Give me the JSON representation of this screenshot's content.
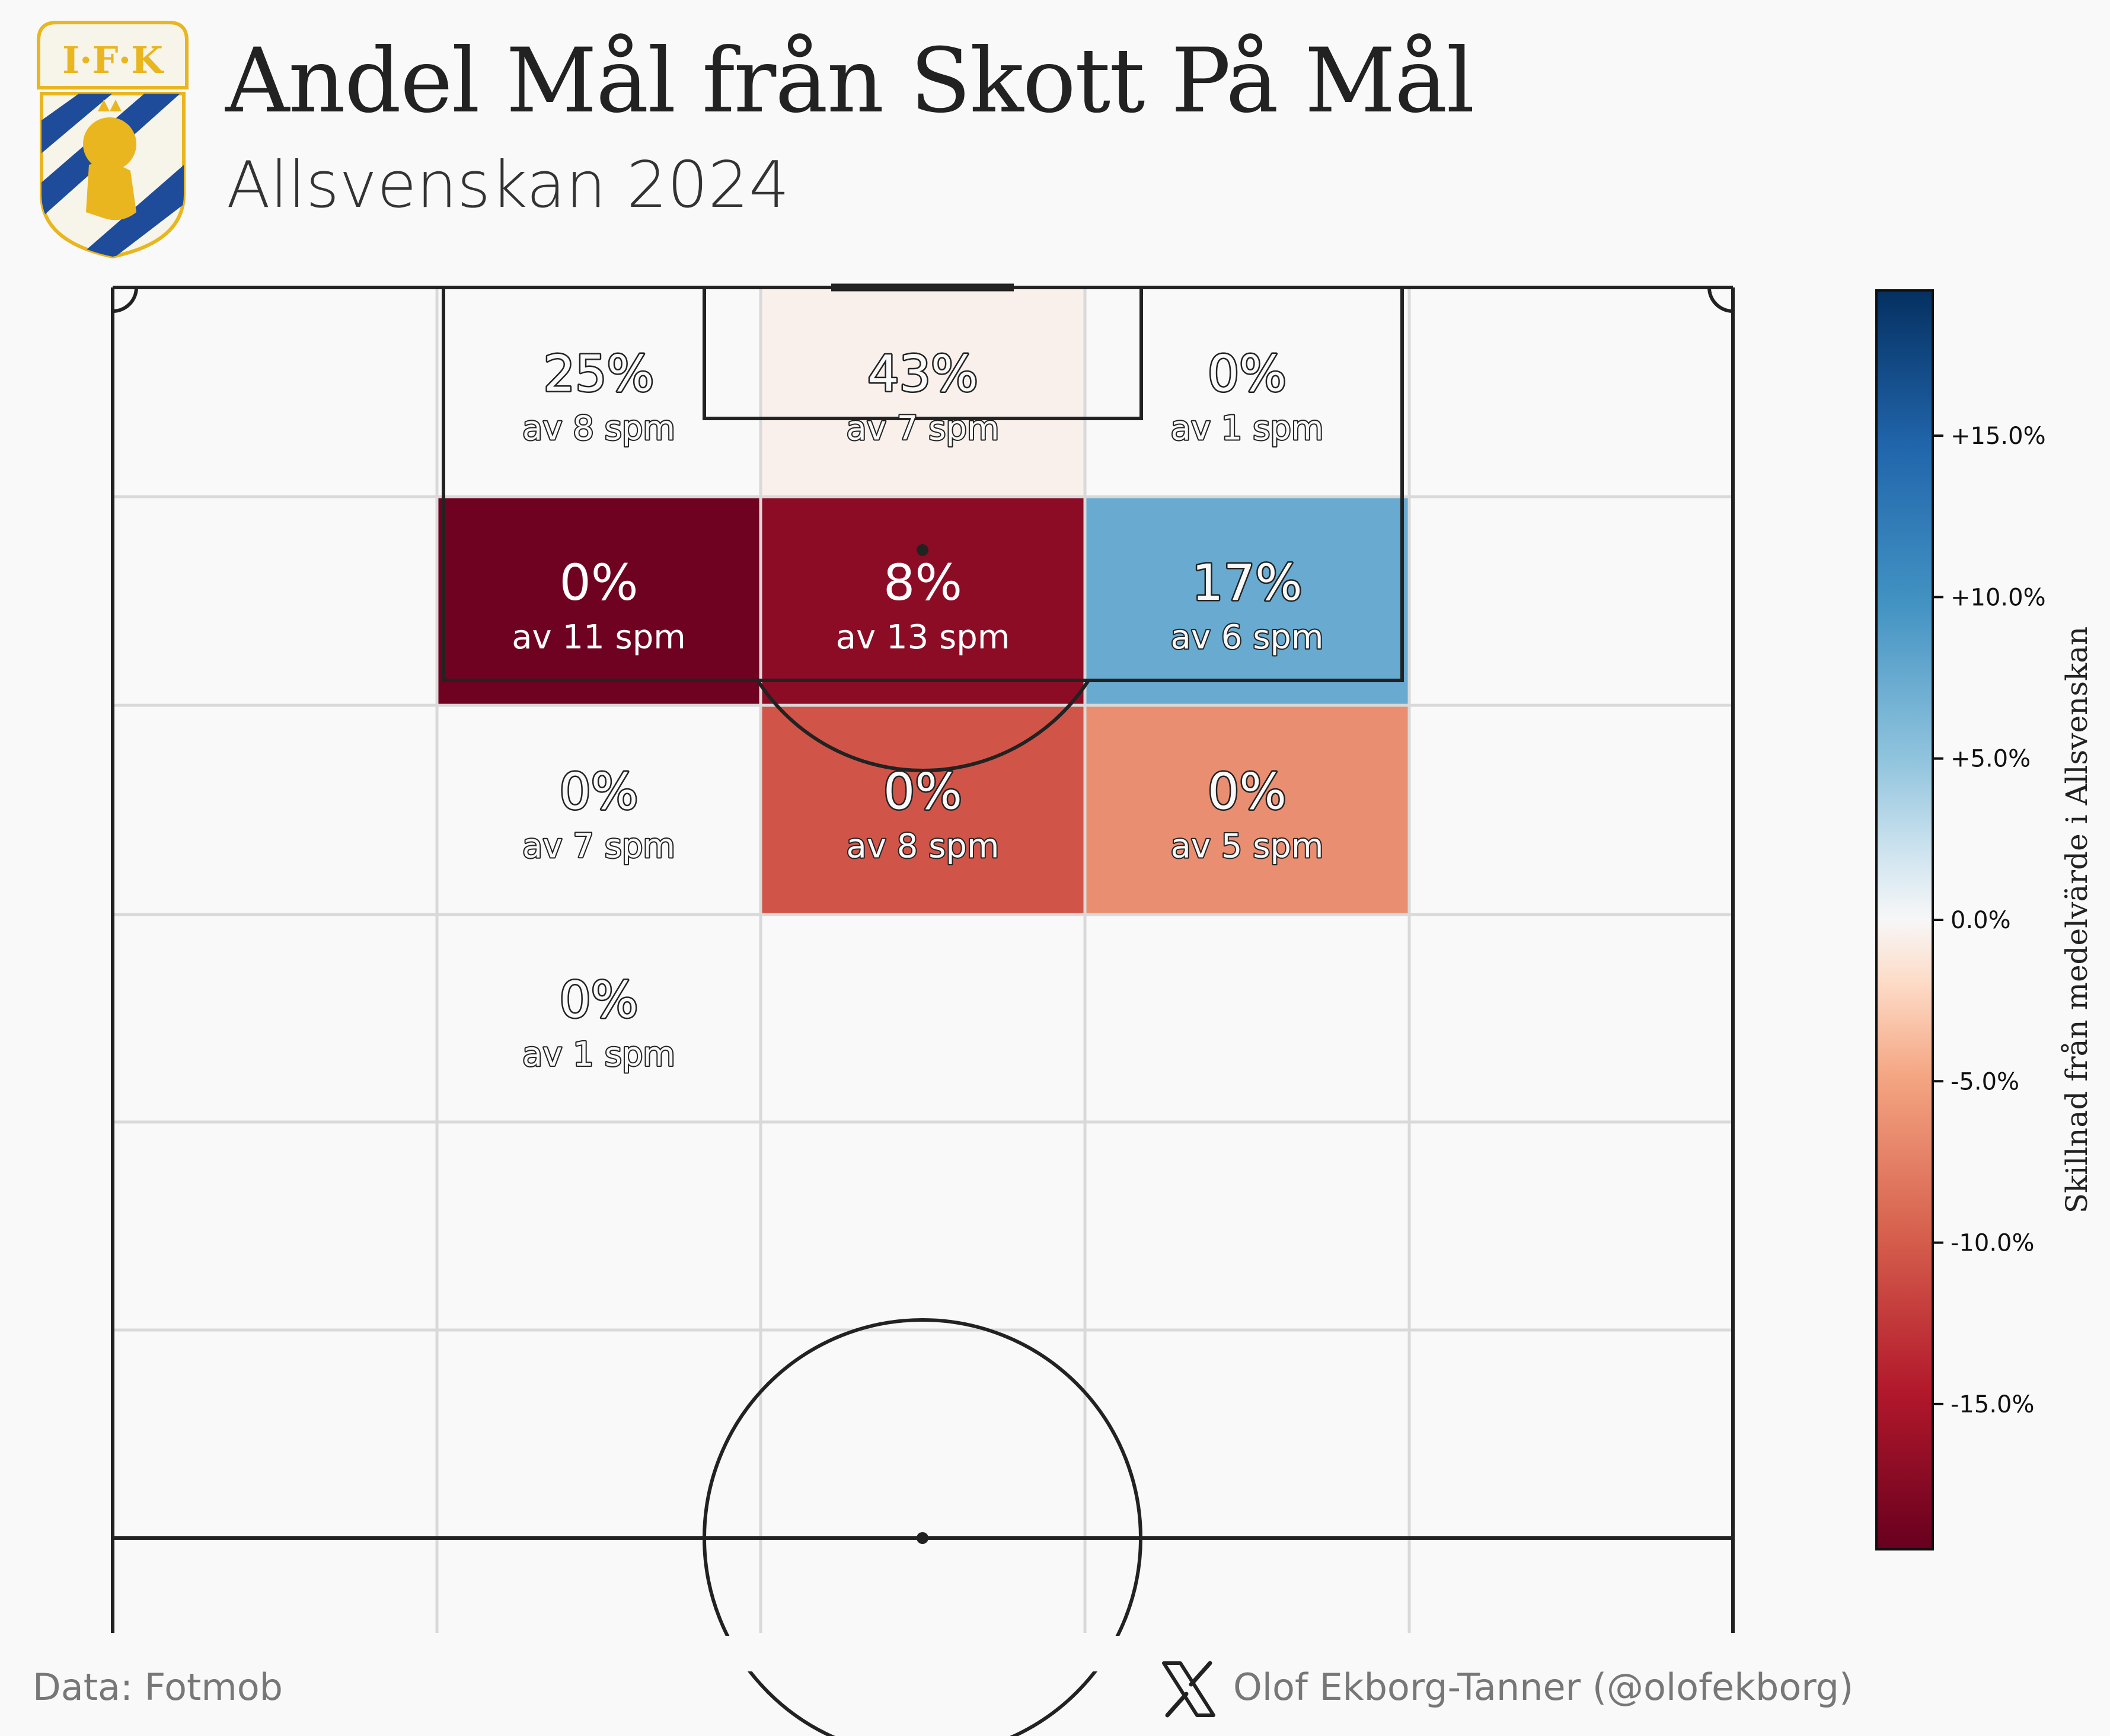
{
  "header": {
    "title": "Andel Mål från Skott På Mål",
    "subtitle": "Allsvenskan 2024",
    "logo_text": "I·F·K"
  },
  "footer": {
    "source": "Data: Fotmob",
    "author": "Olof Ekborg-Tanner (@olofekborg)",
    "author_icon": "x-logo-icon"
  },
  "colors": {
    "background": "#f9f9f9",
    "pitch_line": "#222222",
    "grid_line": "#d9d9d9",
    "cmap": "RdBu"
  },
  "chart_data": {
    "type": "heatmap",
    "title": "Andel Mål från Skott På Mål",
    "subtitle": "Allsvenskan 2024",
    "grid": {
      "rows": 6,
      "cols": 5
    },
    "cells": [
      {
        "row": 0,
        "col": 1,
        "pct": "25%",
        "count": "av 8 spm",
        "diff": 0.0
      },
      {
        "row": 0,
        "col": 2,
        "pct": "43%",
        "count": "av 7 spm",
        "diff": -0.5
      },
      {
        "row": 0,
        "col": 3,
        "pct": "0%",
        "count": "av 1 spm",
        "diff": 0.0
      },
      {
        "row": 1,
        "col": 1,
        "pct": "0%",
        "count": "av 11 spm",
        "diff": -19.0
      },
      {
        "row": 1,
        "col": 2,
        "pct": "8%",
        "count": "av 13 spm",
        "diff": -17.0
      },
      {
        "row": 1,
        "col": 3,
        "pct": "17%",
        "count": "av 6 spm",
        "diff": 7.5
      },
      {
        "row": 2,
        "col": 1,
        "pct": "0%",
        "count": "av 7 spm",
        "diff": 0.0
      },
      {
        "row": 2,
        "col": 2,
        "pct": "0%",
        "count": "av 8 spm",
        "diff": -10.5
      },
      {
        "row": 2,
        "col": 3,
        "pct": "0%",
        "count": "av 5 spm",
        "diff": -6.5
      },
      {
        "row": 3,
        "col": 1,
        "pct": "0%",
        "count": "av 1 spm",
        "diff": 0.0
      }
    ],
    "colorbar": {
      "label": "Skillnad från medelvärde i Allsvenskan",
      "range": [
        -19.5,
        19.5
      ],
      "ticks": [
        {
          "value": 15,
          "label": "+15.0%"
        },
        {
          "value": 10,
          "label": "+10.0%"
        },
        {
          "value": 5,
          "label": "+5.0%"
        },
        {
          "value": 0,
          "label": "0.0%"
        },
        {
          "value": -5,
          "label": "-5.0%"
        },
        {
          "value": -10,
          "label": "-10.0%"
        },
        {
          "value": -15,
          "label": "-15.0%"
        }
      ]
    }
  }
}
